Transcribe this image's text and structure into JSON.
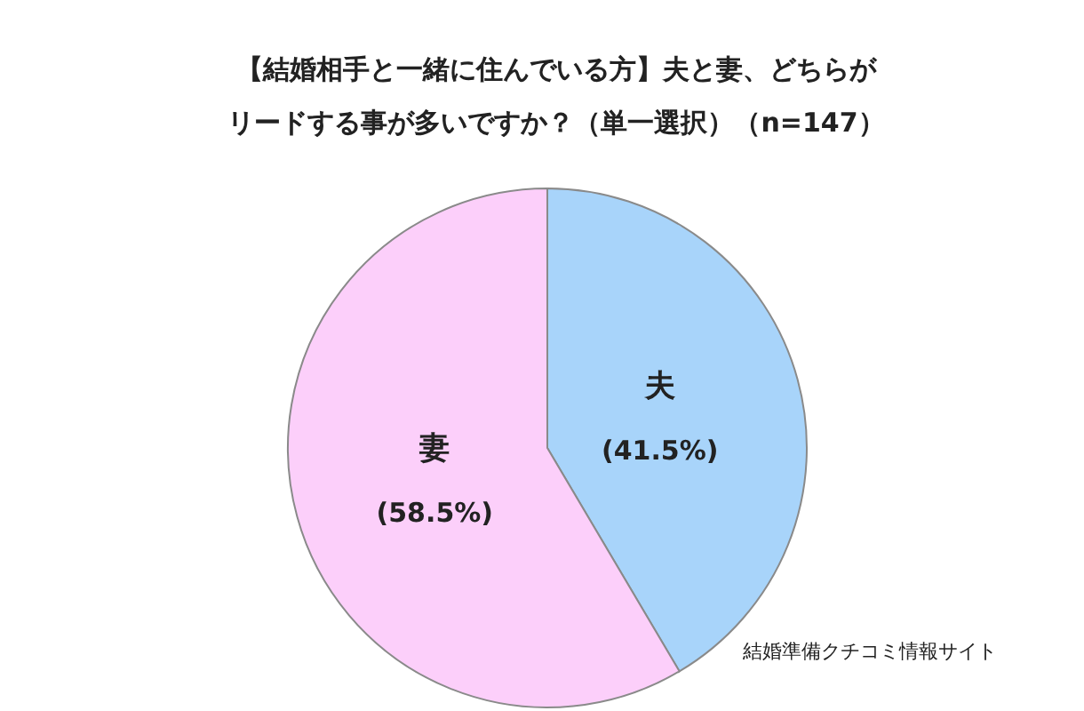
{
  "chart_data": {
    "type": "pie",
    "title": "【結婚相手と一緒に住んでいる方】夫と妻、どちらがリードする事が多いですか？（単一選択）（n=147）",
    "categories": [
      "夫",
      "妻"
    ],
    "values": [
      41.5,
      58.5
    ],
    "colors": [
      "#a8d4fa",
      "#fccffa"
    ],
    "value_labels": [
      "(41.5%)",
      "(58.5%)"
    ],
    "annotations": [
      "結婚準備クチコミ情報サイト"
    ],
    "legend": false
  }
}
